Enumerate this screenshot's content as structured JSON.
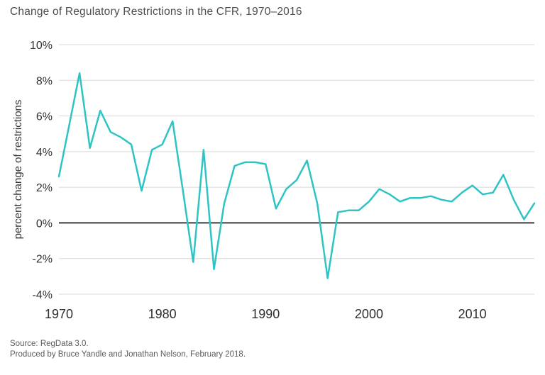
{
  "title": "Change of Regulatory Restrictions in the CFR, 1970–2016",
  "footer": {
    "source": "Source: RegData 3.0.",
    "credit": "Produced by Bruce Yandle and Jonathan Nelson, February 2018."
  },
  "chart_data": {
    "type": "line",
    "title": "Change of Regulatory Restrictions in the CFR, 1970–2016",
    "xlabel": "",
    "ylabel": "percent change of restrictions",
    "ylim": [
      -4,
      10
    ],
    "xlim": [
      1970,
      2016
    ],
    "grid": true,
    "legend": "none",
    "line_color": "#2ec4c6",
    "grid_color": "#d8d8d8",
    "zero_line_color": "#3a3a3a",
    "ytick_values": [
      10,
      8,
      6,
      4,
      2,
      0,
      -2,
      -4
    ],
    "ytick_labels": [
      "10%",
      "8%",
      "6%",
      "4%",
      "2%",
      "0%",
      "-2%",
      "-4%"
    ],
    "xtick_values": [
      1970,
      1980,
      1990,
      2000,
      2010
    ],
    "xtick_labels": [
      "1970",
      "1980",
      "1990",
      "2000",
      "2010"
    ],
    "x": [
      1970,
      1971,
      1972,
      1973,
      1974,
      1975,
      1976,
      1977,
      1978,
      1979,
      1980,
      1981,
      1982,
      1983,
      1984,
      1985,
      1986,
      1987,
      1988,
      1989,
      1990,
      1991,
      1992,
      1993,
      1994,
      1995,
      1996,
      1997,
      1998,
      1999,
      2000,
      2001,
      2002,
      2003,
      2004,
      2005,
      2006,
      2007,
      2008,
      2009,
      2010,
      2011,
      2012,
      2013,
      2014,
      2015,
      2016
    ],
    "values": [
      2.6,
      5.5,
      8.4,
      4.2,
      6.3,
      5.1,
      4.8,
      4.4,
      1.8,
      4.1,
      4.4,
      5.7,
      1.8,
      -2.2,
      4.1,
      -2.6,
      1.1,
      3.2,
      3.4,
      3.4,
      3.3,
      0.8,
      1.9,
      2.4,
      3.5,
      1.1,
      -3.1,
      0.6,
      0.7,
      0.7,
      1.2,
      1.9,
      1.6,
      1.2,
      1.4,
      1.4,
      1.5,
      1.3,
      1.2,
      1.7,
      2.1,
      1.6,
      1.7,
      2.7,
      1.3,
      0.2,
      1.1
    ]
  }
}
